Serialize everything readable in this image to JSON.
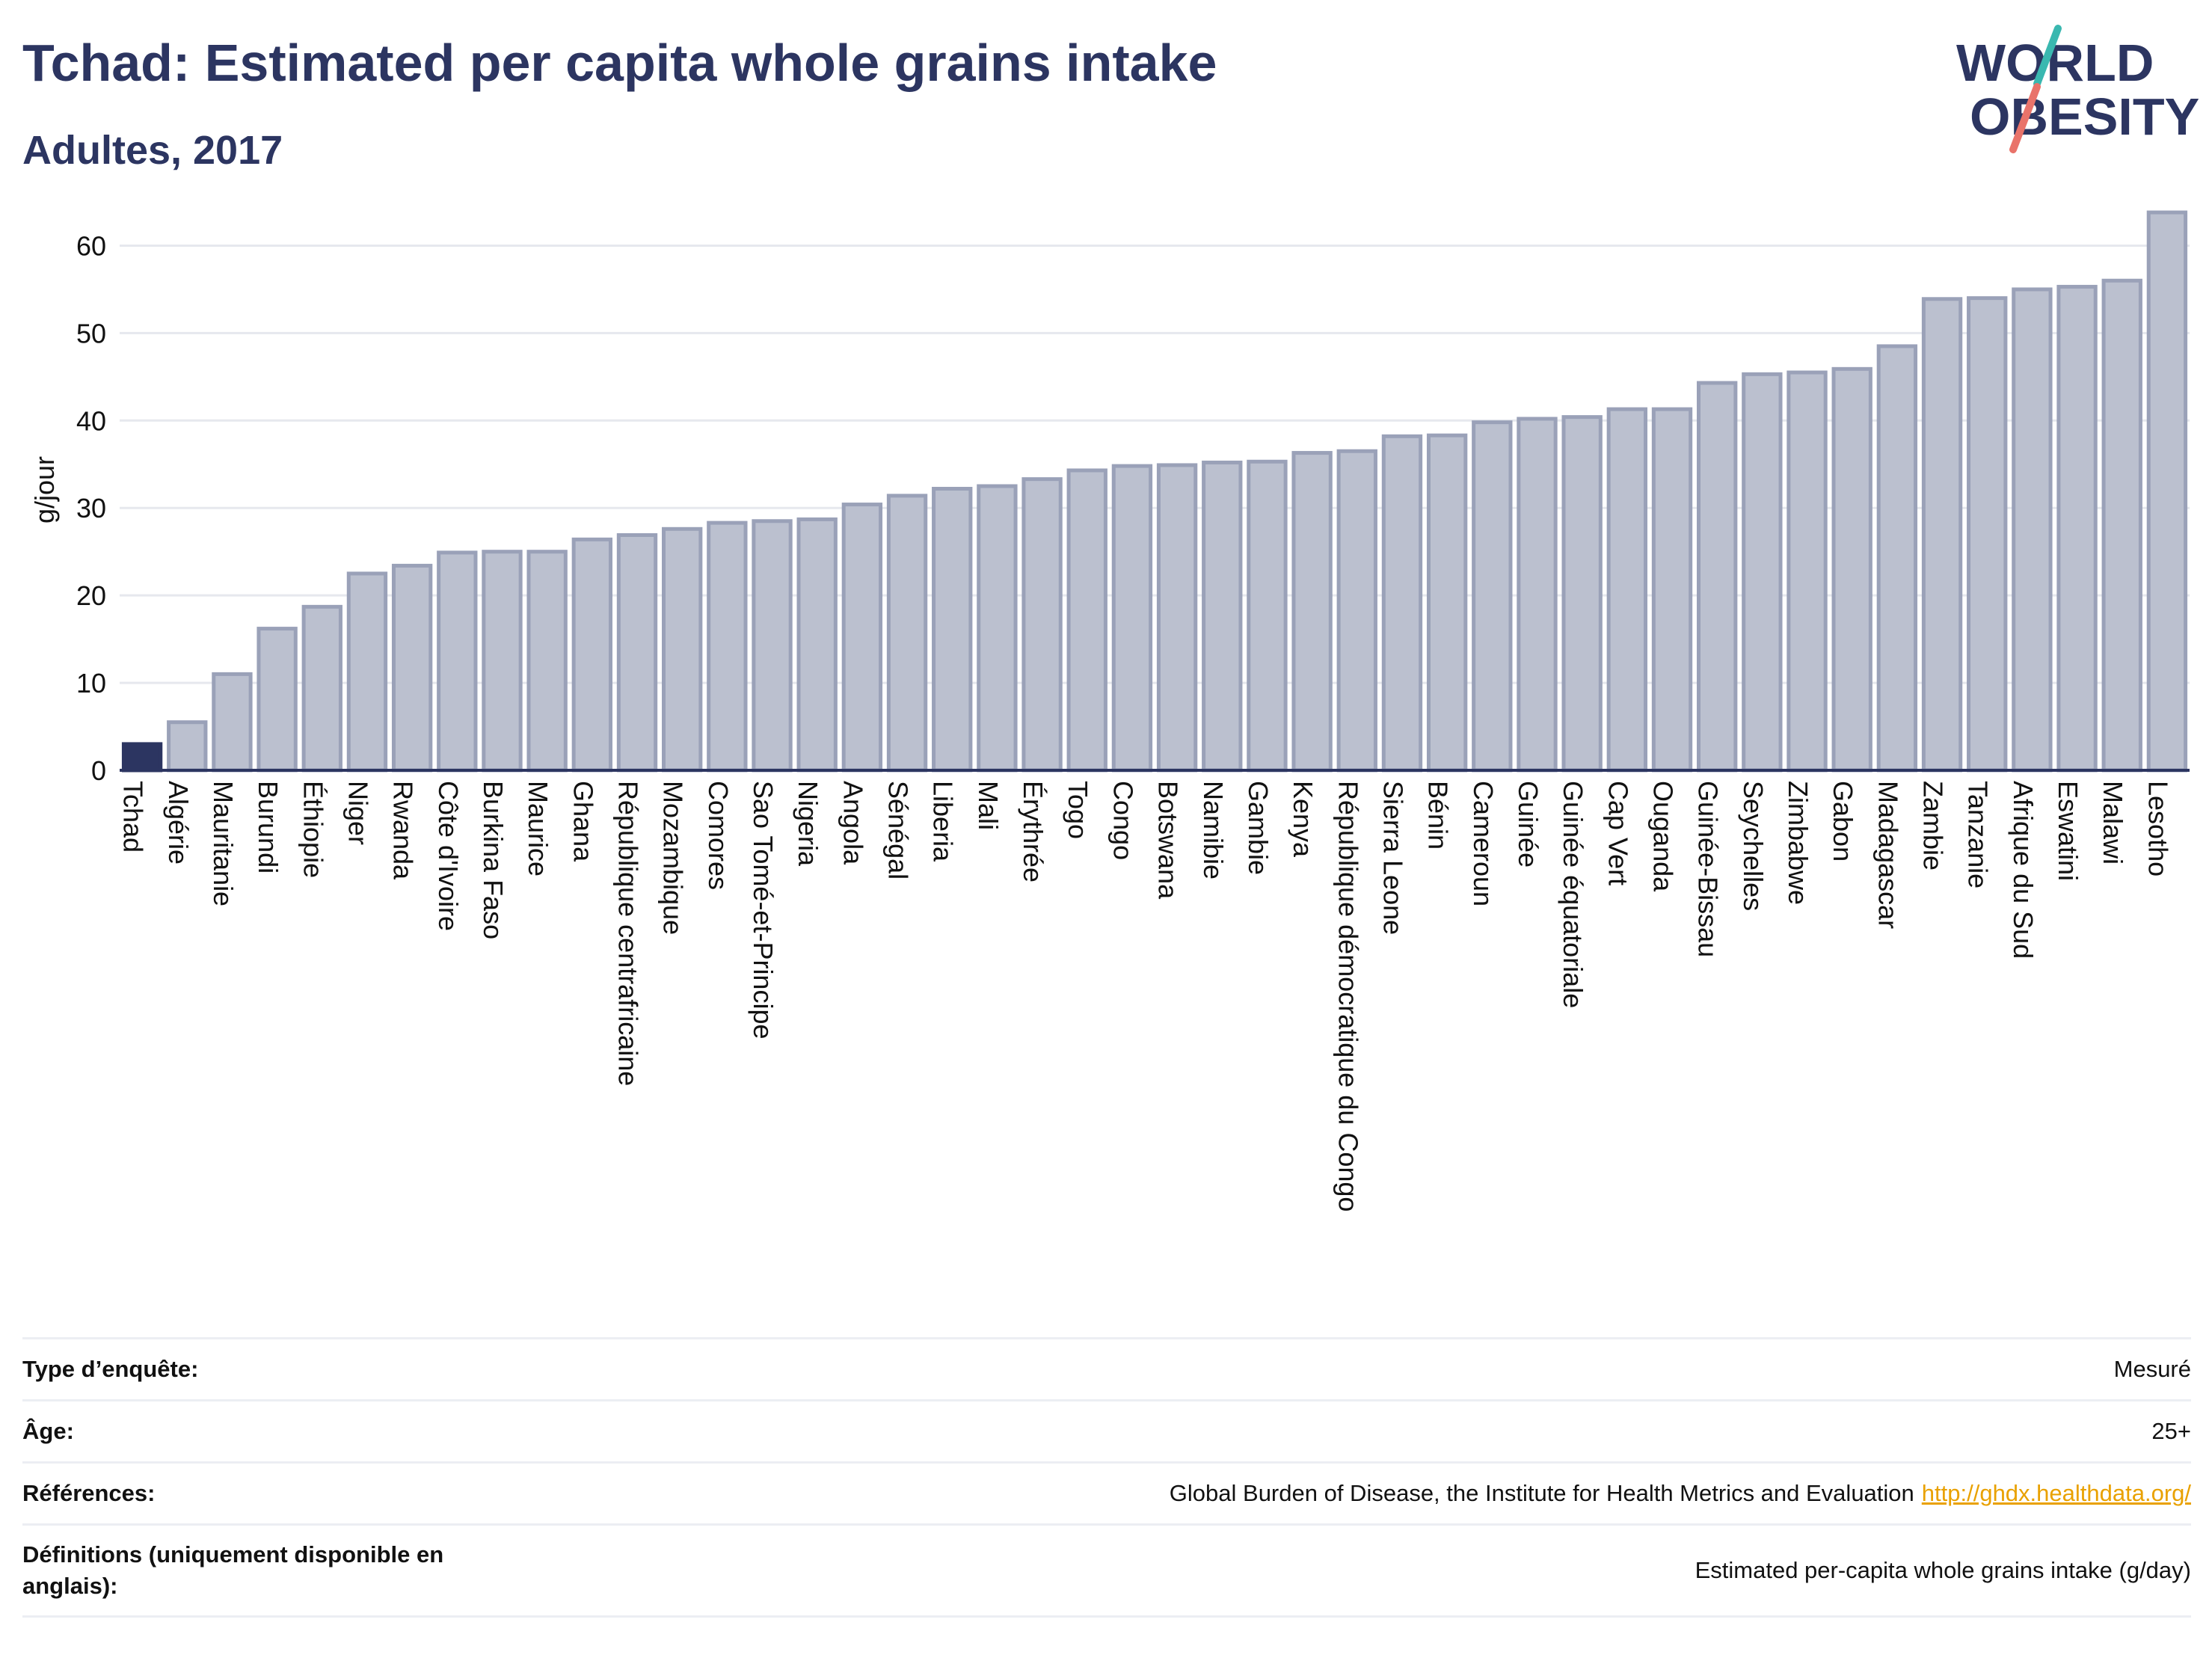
{
  "header": {
    "title": "Tchad: Estimated per capita whole grains intake",
    "subtitle": "Adultes, 2017"
  },
  "logo": {
    "line1": "WORLD",
    "line2": "OBESITY",
    "accent_colors": [
      "#3ab8b0",
      "#e9736a"
    ]
  },
  "colors": {
    "highlight_bar": "#2c3561",
    "bar_fill": "#bbc0cf",
    "bar_stroke": "#9aa1b8",
    "text_dark": "#2c3561",
    "link": "#e9a100"
  },
  "chart_data": {
    "type": "bar",
    "ylabel": "g/jour",
    "ylim": [
      0,
      65
    ],
    "yticks": [
      0,
      10,
      20,
      30,
      40,
      50,
      60
    ],
    "grid": true,
    "highlight": "Tchad",
    "categories": [
      "Tchad",
      "Algérie",
      "Mauritanie",
      "Burundi",
      "Éthiopie",
      "Niger",
      "Rwanda",
      "Côte d'Ivoire",
      "Burkina Faso",
      "Maurice",
      "Ghana",
      "République centrafricaine",
      "Mozambique",
      "Comores",
      "Sao Tomé-et-Principe",
      "Nigeria",
      "Angola",
      "Sénégal",
      "Liberia",
      "Mali",
      "Érythrée",
      "Togo",
      "Congo",
      "Botswana",
      "Namibie",
      "Gambie",
      "Kenya",
      "République démocratique du Congo",
      "Sierra Leone",
      "Bénin",
      "Cameroun",
      "Guinée",
      "Guinée équatoriale",
      "Cap Vert",
      "Ouganda",
      "Guinée-Bissau",
      "Seychelles",
      "Zimbabwe",
      "Gabon",
      "Madagascar",
      "Zambie",
      "Tanzanie",
      "Afrique du Sud",
      "Eswatini",
      "Malawi",
      "Lesotho"
    ],
    "values": [
      3.0,
      5.5,
      11.0,
      16.2,
      18.7,
      22.5,
      23.4,
      24.9,
      25.0,
      25.0,
      26.4,
      26.9,
      27.6,
      28.3,
      28.5,
      28.7,
      30.4,
      31.4,
      32.2,
      32.5,
      33.3,
      34.3,
      34.8,
      34.9,
      35.2,
      35.3,
      36.3,
      36.5,
      38.2,
      38.3,
      39.8,
      40.2,
      40.4,
      41.3,
      41.3,
      44.3,
      45.3,
      45.5,
      45.9,
      48.5,
      53.9,
      54.0,
      55.0,
      55.3,
      56.0,
      63.8
    ]
  },
  "info": [
    {
      "label": "Type d’enquête:",
      "value": "Mesuré",
      "link": ""
    },
    {
      "label": "Âge:",
      "value": "25+",
      "link": ""
    },
    {
      "label": "Références:",
      "value": "Global Burden of Disease, the Institute for Health Metrics and Evaluation",
      "link": "http://ghdx.healthdata.org/"
    },
    {
      "label": "Définitions (uniquement disponible en anglais):",
      "value": "Estimated per-capita whole grains intake (g/day)",
      "link": ""
    }
  ]
}
